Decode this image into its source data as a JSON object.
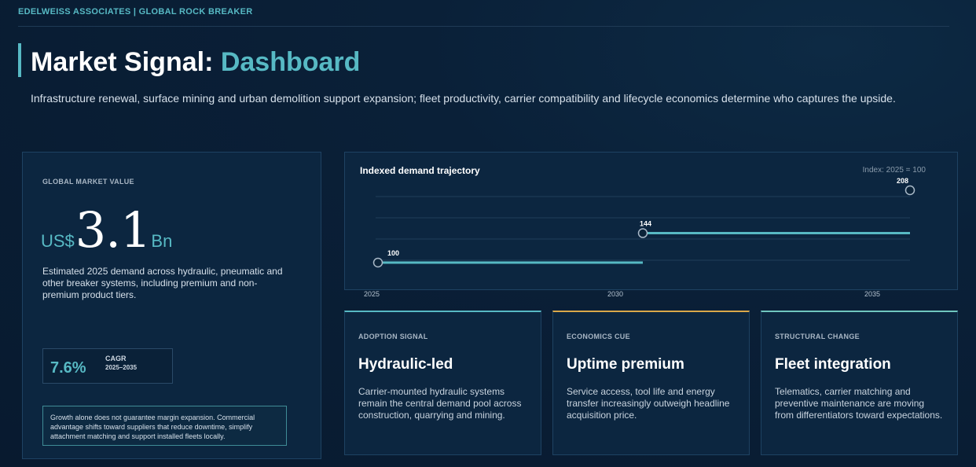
{
  "header": {
    "brand": "EDELWEISS ASSOCIATES | GLOBAL ROCK BREAKER",
    "title_main": "Market Signal: ",
    "title_highlight": "Dashboard",
    "subtitle": "Infrastructure renewal, surface mining and urban demolition support expansion; fleet productivity, carrier compatibility and lifecycle economics determine who captures the upside."
  },
  "market": {
    "label": "GLOBAL MARKET VALUE",
    "prefix": "US$",
    "value": "3.1",
    "suffix": "Bn",
    "description": "Estimated 2025 demand across hydraulic, pneumatic and other breaker systems, including premium and non-premium product tiers.",
    "cagr_value": "7.6%",
    "cagr_label": "CAGR",
    "cagr_range": "2025–2035",
    "note": "Growth alone does not guarantee margin expansion. Commercial advantage shifts toward suppliers that reduce downtime, simplify attachment matching and support installed fleets locally."
  },
  "chart_data": {
    "type": "line",
    "title": "Indexed demand trajectory",
    "annotation": "Index: 2025 = 100",
    "x": [
      "2025",
      "2030",
      "2035"
    ],
    "values": [
      100,
      144,
      208
    ],
    "data_labels": [
      "100",
      "144",
      "208"
    ],
    "ylim": [
      100,
      208
    ],
    "grid": true,
    "line_color": "#57b9c4"
  },
  "signals": [
    {
      "label": "ADOPTION SIGNAL",
      "heading": "Hydraulic-led",
      "text": "Carrier-mounted hydraulic systems remain the central demand pool across construction, quarrying and mining.",
      "accent": "#57b9c4"
    },
    {
      "label": "ECONOMICS CUE",
      "heading": "Uptime premium",
      "text": "Service access, tool life and energy transfer increasingly outweigh headline acquisition price.",
      "accent": "#d9a84a"
    },
    {
      "label": "STRUCTURAL CHANGE",
      "heading": "Fleet integration",
      "text": "Telematics, carrier matching and preventive maintenance are moving from differentiators toward expectations.",
      "accent": "#6fc6bf"
    }
  ]
}
